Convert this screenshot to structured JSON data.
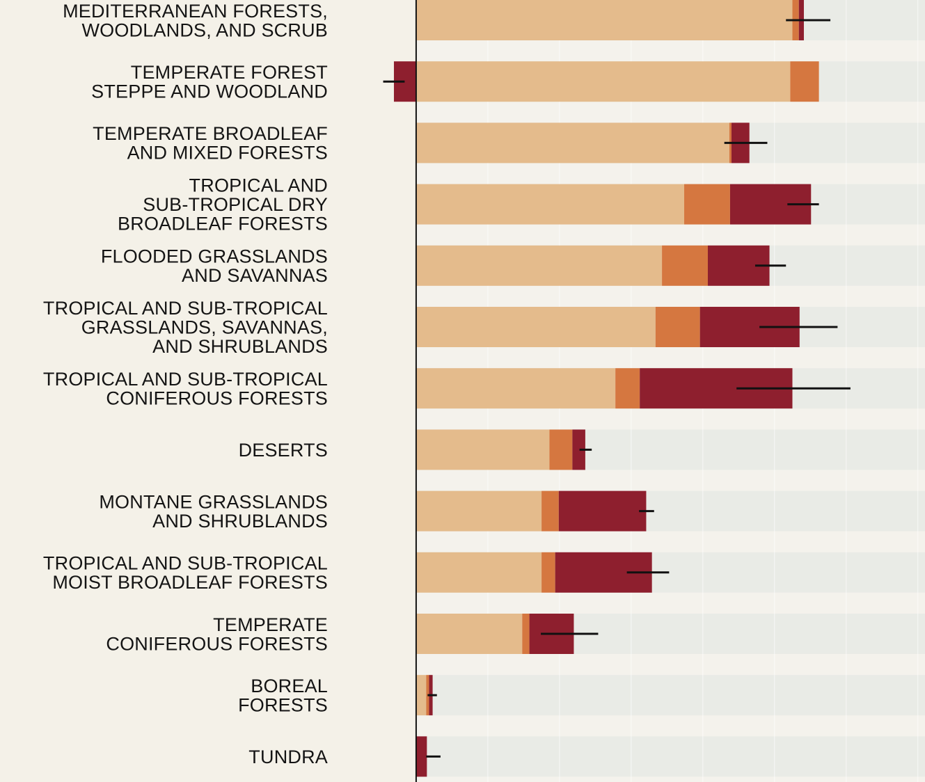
{
  "chart_data": {
    "type": "bar",
    "orientation": "horizontal",
    "stacked": true,
    "title": "",
    "xlabel": "",
    "ylabel": "",
    "xlim": [
      -30,
      710
    ],
    "grid": true,
    "legend": "none",
    "colors": {
      "series_1": "#e4bb8c",
      "series_2": "#d57740",
      "series_3": "#8e1f2e",
      "error_bar": "#111111",
      "baseline": "#111111",
      "label_background": "#f4f1e8",
      "track_light": "#e9ebe6",
      "track_band": "#f4f2ec"
    },
    "categories": [
      [
        "MEDITERRANEAN FORESTS,",
        "WOODLANDS, AND SCRUB"
      ],
      [
        "TEMPERATE FOREST",
        "STEPPE AND WOODLAND"
      ],
      [
        "TEMPERATE BROADLEAF",
        "AND MIXED FORESTS"
      ],
      [
        "TROPICAL AND",
        "SUB-TROPICAL DRY",
        "BROADLEAF FORESTS"
      ],
      [
        "FLOODED GRASSLANDS",
        "AND SAVANNAS"
      ],
      [
        "TROPICAL AND SUB-TROPICAL",
        "GRASSLANDS, SAVANNAS,",
        "AND SHRUBLANDS"
      ],
      [
        "TROPICAL AND SUB-TROPICAL",
        "CONIFEROUS FORESTS"
      ],
      [
        "DESERTS"
      ],
      [
        "MONTANE GRASSLANDS",
        "AND SHRUBLANDS"
      ],
      [
        "TROPICAL AND SUB-TROPICAL",
        "MOIST BROADLEAF FORESTS"
      ],
      [
        "TEMPERATE",
        "CONIFEROUS FORESTS"
      ],
      [
        "BOREAL",
        "FORESTS"
      ],
      [
        "TUNDRA"
      ]
    ],
    "series": [
      {
        "values": [
          525,
          522,
          437,
          374,
          343,
          334,
          278,
          186,
          175,
          175,
          148,
          14,
          0
        ]
      },
      {
        "values": [
          9,
          40,
          3,
          64,
          64,
          62,
          34,
          32,
          24,
          19,
          10,
          4,
          0
        ]
      },
      {
        "values": [
          7,
          -31,
          25,
          113,
          86,
          139,
          213,
          18,
          122,
          135,
          62,
          5,
          15
        ]
      }
    ],
    "error_bars": [
      {
        "low": 516,
        "high": 578
      },
      {
        "low": -46,
        "high": -16
      },
      {
        "low": 430,
        "high": 490
      },
      {
        "low": 518,
        "high": 562
      },
      {
        "low": 473,
        "high": 516
      },
      {
        "low": 479,
        "high": 588
      },
      {
        "low": 447,
        "high": 606
      },
      {
        "low": 228,
        "high": 245
      },
      {
        "low": 311,
        "high": 332
      },
      {
        "low": 294,
        "high": 353
      },
      {
        "low": 174,
        "high": 254
      },
      {
        "low": 16,
        "high": 29
      },
      {
        "low": 14,
        "high": 34
      }
    ]
  }
}
